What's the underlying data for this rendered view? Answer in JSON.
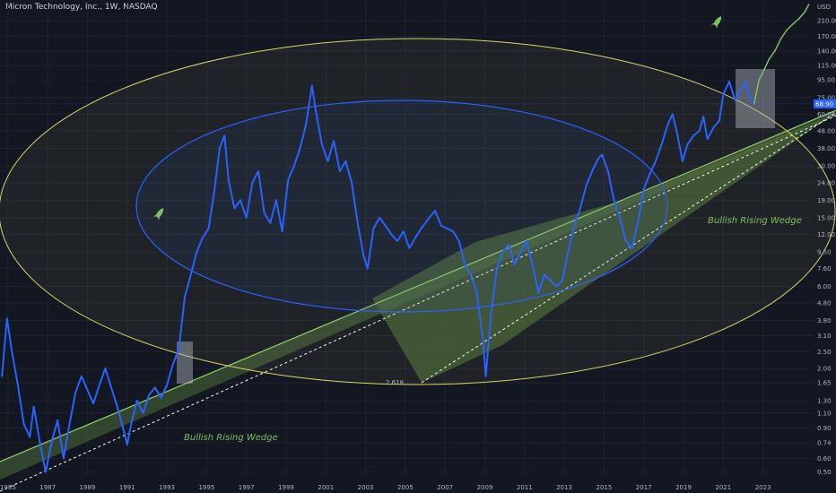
{
  "header": {
    "symbol_line": "Micron Technology, Inc., 1W, NASDAQ",
    "currency": "USD"
  },
  "chart_data": {
    "type": "line",
    "title": "Micron Technology, Inc., 1W, NASDAQ",
    "y_scale": "log",
    "ylim": [
      0.48,
      270
    ],
    "xlim": [
      1984.6,
      2025.5
    ],
    "x_ticks": [
      "1985",
      "1987",
      "1989",
      "1991",
      "1993",
      "1995",
      "1997",
      "1999",
      "2001",
      "2003",
      "2005",
      "2007",
      "2009",
      "2011",
      "2013",
      "2015",
      "2017",
      "2019",
      "2021",
      "2023"
    ],
    "y_ticks": [
      "210.00",
      "170.00",
      "140.00",
      "115.00",
      "95.00",
      "75.00",
      "60.00",
      "48.00",
      "38.00",
      "30.00",
      "24.00",
      "19.00",
      "15.00",
      "12.00",
      "9.50",
      "7.60",
      "6.00",
      "4.80",
      "3.80",
      "3.10",
      "2.50",
      "2.00",
      "1.65",
      "1.30",
      "1.10",
      "0.90",
      "0.74",
      "0.60",
      "0.50"
    ],
    "last_price_label": "68.90",
    "fib_label": "2.618",
    "annotations": [
      "Bullish Rising Wedge",
      "Bullish Rising Wedge"
    ],
    "series": [
      {
        "name": "",
        "color": "#2962ff",
        "points": [
          [
            1984.7,
            1.8
          ],
          [
            1984.95,
            3.9
          ],
          [
            1985.2,
            2.5
          ],
          [
            1985.5,
            1.6
          ],
          [
            1985.8,
            0.95
          ],
          [
            1986.1,
            0.8
          ],
          [
            1986.3,
            1.2
          ],
          [
            1986.6,
            0.75
          ],
          [
            1986.9,
            0.5
          ],
          [
            1987.2,
            0.75
          ],
          [
            1987.5,
            1.0
          ],
          [
            1987.8,
            0.6
          ],
          [
            1988.1,
            0.95
          ],
          [
            1988.4,
            1.45
          ],
          [
            1988.7,
            1.8
          ],
          [
            1989.0,
            1.5
          ],
          [
            1989.3,
            1.25
          ],
          [
            1989.6,
            1.6
          ],
          [
            1989.9,
            2.0
          ],
          [
            1990.2,
            1.55
          ],
          [
            1990.5,
            1.2
          ],
          [
            1990.8,
            0.9
          ],
          [
            1991.0,
            0.72
          ],
          [
            1991.2,
            0.95
          ],
          [
            1991.5,
            1.3
          ],
          [
            1991.8,
            1.1
          ],
          [
            1992.1,
            1.4
          ],
          [
            1992.4,
            1.55
          ],
          [
            1992.7,
            1.35
          ],
          [
            1993.0,
            1.6
          ],
          [
            1993.3,
            2.1
          ],
          [
            1993.6,
            2.6
          ],
          [
            1993.9,
            5.2
          ],
          [
            1994.2,
            7.0
          ],
          [
            1994.5,
            9.5
          ],
          [
            1994.8,
            11.5
          ],
          [
            1995.1,
            13.0
          ],
          [
            1995.4,
            22.0
          ],
          [
            1995.65,
            38.0
          ],
          [
            1995.9,
            45.0
          ],
          [
            1996.1,
            25.0
          ],
          [
            1996.4,
            17.0
          ],
          [
            1996.7,
            19.0
          ],
          [
            1997.0,
            15.0
          ],
          [
            1997.3,
            24.0
          ],
          [
            1997.6,
            28.0
          ],
          [
            1997.9,
            16.0
          ],
          [
            1998.2,
            14.0
          ],
          [
            1998.5,
            19.0
          ],
          [
            1998.8,
            12.5
          ],
          [
            1999.1,
            25.0
          ],
          [
            1999.4,
            30.0
          ],
          [
            1999.7,
            38.0
          ],
          [
            2000.0,
            52.0
          ],
          [
            2000.3,
            88.0
          ],
          [
            2000.5,
            62.0
          ],
          [
            2000.8,
            40.0
          ],
          [
            2001.1,
            32.0
          ],
          [
            2001.4,
            42.0
          ],
          [
            2001.7,
            28.0
          ],
          [
            2002.0,
            32.0
          ],
          [
            2002.3,
            24.0
          ],
          [
            2002.6,
            14.0
          ],
          [
            2002.9,
            9.0
          ],
          [
            2003.1,
            7.6
          ],
          [
            2003.4,
            13.0
          ],
          [
            2003.7,
            15.0
          ],
          [
            2004.0,
            13.5
          ],
          [
            2004.3,
            12.0
          ],
          [
            2004.6,
            11.0
          ],
          [
            2004.9,
            12.5
          ],
          [
            2005.2,
            10.0
          ],
          [
            2005.5,
            11.5
          ],
          [
            2005.8,
            13.0
          ],
          [
            2006.2,
            15.0
          ],
          [
            2006.5,
            16.5
          ],
          [
            2006.8,
            13.5
          ],
          [
            2007.1,
            13.0
          ],
          [
            2007.4,
            12.5
          ],
          [
            2007.7,
            11.0
          ],
          [
            2008.0,
            8.0
          ],
          [
            2008.3,
            7.0
          ],
          [
            2008.6,
            5.5
          ],
          [
            2008.9,
            3.0
          ],
          [
            2009.05,
            1.8
          ],
          [
            2009.3,
            4.0
          ],
          [
            2009.6,
            7.5
          ],
          [
            2009.9,
            9.5
          ],
          [
            2010.2,
            10.5
          ],
          [
            2010.5,
            8.0
          ],
          [
            2010.8,
            9.5
          ],
          [
            2011.1,
            11.0
          ],
          [
            2011.4,
            8.0
          ],
          [
            2011.7,
            5.5
          ],
          [
            2012.0,
            7.0
          ],
          [
            2012.3,
            6.5
          ],
          [
            2012.6,
            6.0
          ],
          [
            2012.9,
            6.5
          ],
          [
            2013.2,
            9.5
          ],
          [
            2013.5,
            13.5
          ],
          [
            2013.8,
            17.0
          ],
          [
            2014.1,
            23.0
          ],
          [
            2014.4,
            28.0
          ],
          [
            2014.7,
            33.0
          ],
          [
            2014.9,
            35.0
          ],
          [
            2015.2,
            28.0
          ],
          [
            2015.5,
            19.0
          ],
          [
            2015.8,
            15.0
          ],
          [
            2016.1,
            11.0
          ],
          [
            2016.4,
            10.0
          ],
          [
            2016.7,
            14.0
          ],
          [
            2017.0,
            22.0
          ],
          [
            2017.3,
            27.0
          ],
          [
            2017.6,
            32.0
          ],
          [
            2017.9,
            40.0
          ],
          [
            2018.2,
            52.0
          ],
          [
            2018.45,
            60.0
          ],
          [
            2018.7,
            45.0
          ],
          [
            2018.95,
            32.0
          ],
          [
            2019.2,
            40.0
          ],
          [
            2019.5,
            45.0
          ],
          [
            2019.8,
            48.0
          ],
          [
            2020.0,
            58.0
          ],
          [
            2020.2,
            43.0
          ],
          [
            2020.5,
            50.0
          ],
          [
            2020.8,
            55.0
          ],
          [
            2021.0,
            78.0
          ],
          [
            2021.3,
            93.0
          ],
          [
            2021.6,
            72.0
          ],
          [
            2021.9,
            85.0
          ],
          [
            2022.1,
            92.0
          ],
          [
            2022.4,
            73.0
          ],
          [
            2022.55,
            68.9
          ]
        ]
      },
      {
        "name": "",
        "color": "#7fbf62",
        "points": [
          [
            2022.55,
            68.9
          ],
          [
            2022.8,
            95.0
          ],
          [
            2023.0,
            105.0
          ],
          [
            2023.3,
            125.0
          ],
          [
            2023.6,
            140.0
          ],
          [
            2023.9,
            165.0
          ],
          [
            2024.2,
            185.0
          ],
          [
            2024.5,
            200.0
          ],
          [
            2024.8,
            215.0
          ],
          [
            2025.1,
            235.0
          ],
          [
            2025.3,
            260.0
          ]
        ]
      }
    ]
  }
}
